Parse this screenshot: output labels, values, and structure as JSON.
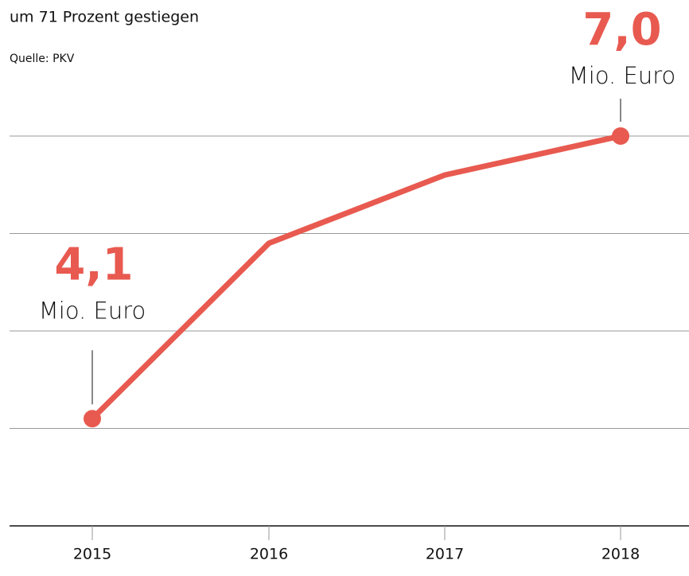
{
  "chart_data": {
    "type": "line",
    "subtitle": "um 71 Prozent gestiegen",
    "source": "Quelle: PKV",
    "categories": [
      "2015",
      "2016",
      "2017",
      "2018"
    ],
    "values": [
      4.1,
      5.9,
      6.6,
      7.0
    ],
    "value_labels": [
      "4,1",
      null,
      null,
      "7,0"
    ],
    "annotations": [
      "Mio. Euro",
      "Mio. Euro"
    ],
    "color": "#e85a50",
    "ylim": [
      3,
      7
    ],
    "yticks": [
      3,
      4,
      5,
      6,
      7
    ],
    "grid": true
  }
}
